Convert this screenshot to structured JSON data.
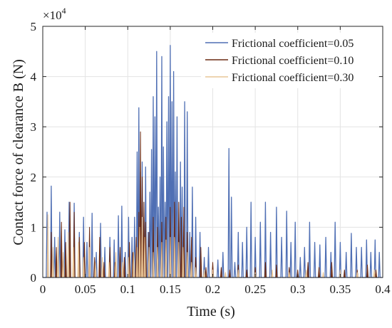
{
  "chart_data": {
    "type": "line",
    "xlabel": "Time (s)",
    "ylabel": "Contact force of clearance B (N)",
    "xlim": [
      0,
      0.4
    ],
    "ylim": [
      0,
      50000
    ],
    "x_ticks": [
      "0",
      "0.05",
      "0.1",
      "0.15",
      "0.2",
      "0.25",
      "0.3",
      "0.35",
      "0.4"
    ],
    "y_ticks": [
      "0",
      "1",
      "2",
      "3",
      "4",
      "5"
    ],
    "y_multiplier_base": "×10",
    "y_multiplier_exp": "4",
    "grid": true,
    "legend_position": "top-right",
    "series": [
      {
        "name": "Frictional coefficient=0.05",
        "color": "#4f6fb4",
        "peaks": [
          [
            0.005,
            13000
          ],
          [
            0.01,
            18200
          ],
          [
            0.014,
            8000
          ],
          [
            0.02,
            13000
          ],
          [
            0.026,
            9500
          ],
          [
            0.031,
            15000
          ],
          [
            0.037,
            14800
          ],
          [
            0.043,
            9000
          ],
          [
            0.048,
            12000
          ],
          [
            0.052,
            7000
          ],
          [
            0.058,
            12800
          ],
          [
            0.063,
            5000
          ],
          [
            0.068,
            10800
          ],
          [
            0.073,
            6000
          ],
          [
            0.079,
            8000
          ],
          [
            0.084,
            7500
          ],
          [
            0.089,
            12300
          ],
          [
            0.093,
            14200
          ],
          [
            0.097,
            5000
          ],
          [
            0.101,
            12000
          ],
          [
            0.105,
            8000
          ],
          [
            0.108,
            12000
          ],
          [
            0.111,
            25000
          ],
          [
            0.113,
            33800
          ],
          [
            0.115,
            21000
          ],
          [
            0.117,
            23000
          ],
          [
            0.119,
            12000
          ],
          [
            0.121,
            22000
          ],
          [
            0.124,
            9000
          ],
          [
            0.126,
            17000
          ],
          [
            0.128,
            25500
          ],
          [
            0.13,
            36000
          ],
          [
            0.132,
            32000
          ],
          [
            0.134,
            45000
          ],
          [
            0.136,
            14000
          ],
          [
            0.138,
            20000
          ],
          [
            0.14,
            44000
          ],
          [
            0.142,
            26000
          ],
          [
            0.144,
            15000
          ],
          [
            0.146,
            31000
          ],
          [
            0.148,
            36000
          ],
          [
            0.15,
            46200
          ],
          [
            0.152,
            35000
          ],
          [
            0.154,
            41000
          ],
          [
            0.156,
            21000
          ],
          [
            0.158,
            32000
          ],
          [
            0.16,
            10000
          ],
          [
            0.162,
            23000
          ],
          [
            0.164,
            18000
          ],
          [
            0.167,
            35000
          ],
          [
            0.17,
            33000
          ],
          [
            0.173,
            9000
          ],
          [
            0.176,
            18000
          ],
          [
            0.18,
            12000
          ],
          [
            0.185,
            9000
          ],
          [
            0.19,
            4000
          ],
          [
            0.195,
            6000
          ],
          [
            0.2,
            2000
          ],
          [
            0.206,
            3500
          ],
          [
            0.212,
            5000
          ],
          [
            0.219,
            25700
          ],
          [
            0.222,
            16000
          ],
          [
            0.226,
            3000
          ],
          [
            0.23,
            9000
          ],
          [
            0.235,
            7000
          ],
          [
            0.24,
            10000
          ],
          [
            0.245,
            15000
          ],
          [
            0.25,
            8000
          ],
          [
            0.256,
            11000
          ],
          [
            0.262,
            15000
          ],
          [
            0.268,
            9000
          ],
          [
            0.275,
            14000
          ],
          [
            0.281,
            8000
          ],
          [
            0.287,
            13200
          ],
          [
            0.292,
            7000
          ],
          [
            0.297,
            11000
          ],
          [
            0.303,
            4000
          ],
          [
            0.308,
            6000
          ],
          [
            0.314,
            11000
          ],
          [
            0.32,
            7000
          ],
          [
            0.326,
            6500
          ],
          [
            0.333,
            8000
          ],
          [
            0.339,
            5000
          ],
          [
            0.344,
            11000
          ],
          [
            0.35,
            7000
          ],
          [
            0.357,
            5000
          ],
          [
            0.363,
            8800
          ],
          [
            0.369,
            6000
          ],
          [
            0.375,
            6000
          ],
          [
            0.381,
            7500
          ],
          [
            0.386,
            5000
          ],
          [
            0.391,
            7500
          ],
          [
            0.396,
            5000
          ]
        ]
      },
      {
        "name": "Frictional coefficient=0.10",
        "color": "#6b2a12",
        "peaks": [
          [
            0.01,
            9000
          ],
          [
            0.016,
            6000
          ],
          [
            0.022,
            11000
          ],
          [
            0.027,
            7000
          ],
          [
            0.032,
            15000
          ],
          [
            0.037,
            13000
          ],
          [
            0.043,
            8000
          ],
          [
            0.049,
            7000
          ],
          [
            0.055,
            10000
          ],
          [
            0.061,
            4000
          ],
          [
            0.067,
            8000
          ],
          [
            0.072,
            3000
          ],
          [
            0.079,
            6000
          ],
          [
            0.085,
            3000
          ],
          [
            0.091,
            6000
          ],
          [
            0.096,
            4000
          ],
          [
            0.102,
            7000
          ],
          [
            0.106,
            5000
          ],
          [
            0.11,
            8000
          ],
          [
            0.113,
            13000
          ],
          [
            0.115,
            29000
          ],
          [
            0.117,
            20000
          ],
          [
            0.119,
            15000
          ],
          [
            0.121,
            11000
          ],
          [
            0.125,
            9000
          ],
          [
            0.13,
            12000
          ],
          [
            0.135,
            10000
          ],
          [
            0.14,
            11000
          ],
          [
            0.145,
            12000
          ],
          [
            0.15,
            14000
          ],
          [
            0.155,
            15000
          ],
          [
            0.16,
            15000
          ],
          [
            0.163,
            12000
          ],
          [
            0.166,
            14000
          ],
          [
            0.17,
            9000
          ],
          [
            0.175,
            8000
          ],
          [
            0.18,
            4000
          ],
          [
            0.186,
            6000
          ],
          [
            0.192,
            2000
          ],
          [
            0.2,
            3000
          ],
          [
            0.21,
            2000
          ],
          [
            0.22,
            1500
          ],
          [
            0.23,
            2500
          ],
          [
            0.24,
            1500
          ],
          [
            0.25,
            2000
          ],
          [
            0.262,
            3000
          ],
          [
            0.275,
            2500
          ],
          [
            0.29,
            2000
          ],
          [
            0.3,
            1500
          ],
          [
            0.312,
            3000
          ],
          [
            0.325,
            2000
          ],
          [
            0.34,
            3000
          ],
          [
            0.355,
            1500
          ],
          [
            0.37,
            1500
          ],
          [
            0.382,
            2500
          ],
          [
            0.392,
            1500
          ]
        ]
      },
      {
        "name": "Frictional coefficient=0.30",
        "color": "#e9c596",
        "peaks": [
          [
            0.006,
            12500
          ],
          [
            0.012,
            6000
          ],
          [
            0.018,
            8000
          ],
          [
            0.024,
            5000
          ],
          [
            0.03,
            9000
          ],
          [
            0.036,
            6000
          ],
          [
            0.042,
            7000
          ],
          [
            0.048,
            4000
          ],
          [
            0.055,
            6000
          ],
          [
            0.062,
            3000
          ],
          [
            0.07,
            4000
          ],
          [
            0.078,
            3000
          ],
          [
            0.086,
            5000
          ],
          [
            0.094,
            3000
          ],
          [
            0.101,
            4000
          ],
          [
            0.107,
            5000
          ],
          [
            0.111,
            6000
          ],
          [
            0.114,
            10000
          ],
          [
            0.117,
            12000
          ],
          [
            0.12,
            8000
          ],
          [
            0.125,
            6000
          ],
          [
            0.13,
            5000
          ],
          [
            0.135,
            6000
          ],
          [
            0.14,
            7000
          ],
          [
            0.145,
            7500
          ],
          [
            0.15,
            8000
          ],
          [
            0.155,
            8000
          ],
          [
            0.16,
            7000
          ],
          [
            0.165,
            6000
          ],
          [
            0.17,
            5000
          ],
          [
            0.175,
            3000
          ],
          [
            0.18,
            2000
          ],
          [
            0.19,
            1500
          ],
          [
            0.2,
            1500
          ],
          [
            0.215,
            1000
          ],
          [
            0.23,
            1500
          ],
          [
            0.25,
            1000
          ],
          [
            0.27,
            1500
          ],
          [
            0.29,
            1000
          ],
          [
            0.31,
            1500
          ],
          [
            0.33,
            1000
          ],
          [
            0.35,
            1500
          ],
          [
            0.37,
            1000
          ],
          [
            0.39,
            1500
          ]
        ]
      }
    ]
  }
}
